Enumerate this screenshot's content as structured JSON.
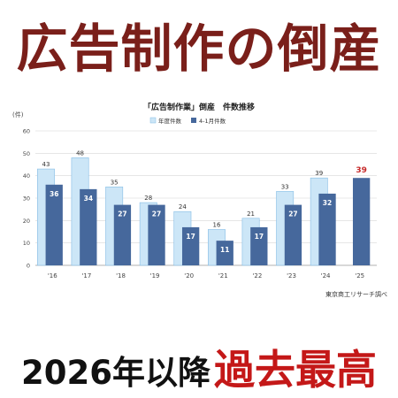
{
  "headline": "広告制作の倒産",
  "footer": {
    "prefix": "2026年以降",
    "highlight": "過去最高"
  },
  "source_credit": "東京商工リサーチ調べ",
  "colors": {
    "headline": "#7a1f1a",
    "annual_bar": "#cce6f7",
    "annual_bar_border": "#86bde6",
    "jan_nov_bar": "#46689c",
    "highlight_label": "#c62828",
    "footer_highlight": "#c41818"
  },
  "chart_data": {
    "type": "bar",
    "title": "「広告制作業」倒産　件数推移",
    "y_unit": "(件)",
    "ylim": [
      0,
      60
    ],
    "yticks": [
      0,
      10,
      20,
      30,
      40,
      50,
      60
    ],
    "grid": true,
    "legend_position": "top-center",
    "categories": [
      "'16",
      "'17",
      "'18",
      "'19",
      "'20",
      "'21",
      "'22",
      "'23",
      "'24",
      "'25"
    ],
    "series": [
      {
        "name": "年度件数",
        "values": [
          43,
          48,
          35,
          28,
          24,
          16,
          21,
          33,
          39,
          null
        ]
      },
      {
        "name": "4-1月件数",
        "values": [
          36,
          34,
          27,
          27,
          17,
          11,
          17,
          27,
          32,
          39
        ]
      }
    ],
    "highlight_label": {
      "category": "'25",
      "value": "39"
    }
  }
}
